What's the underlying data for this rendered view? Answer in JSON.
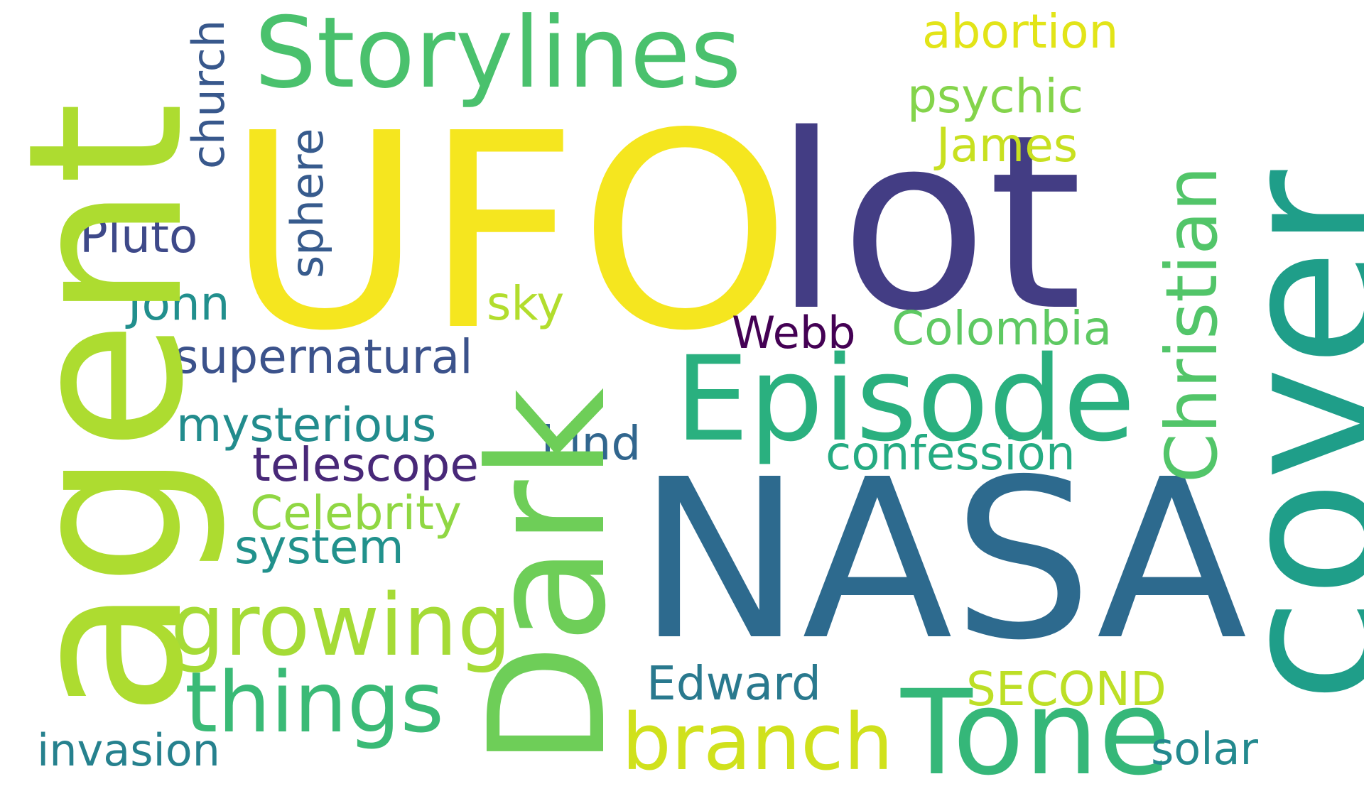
{
  "words": {
    "ufo": {
      "text": "UFO",
      "color": "#f5e61f"
    },
    "lot": {
      "text": "lot",
      "color": "#433d84"
    },
    "nasa": {
      "text": "NASA",
      "color": "#2d6a8e"
    },
    "agent": {
      "text": "agent",
      "color": "#addc30"
    },
    "cover": {
      "text": "cover",
      "color": "#1f9e89"
    },
    "dark": {
      "text": "Dark",
      "color": "#6ece58"
    },
    "storylines": {
      "text": "Storylines",
      "color": "#4ac16d"
    },
    "episode": {
      "text": "Episode",
      "color": "#2ab07f"
    },
    "tone": {
      "text": "Tone",
      "color": "#35b779"
    },
    "branch": {
      "text": "branch",
      "color": "#d0e11c"
    },
    "growing": {
      "text": "growing",
      "color": "#a5db36"
    },
    "things": {
      "text": "things",
      "color": "#3aba76"
    },
    "christian": {
      "text": "Christian",
      "color": "#52c569"
    },
    "abortion": {
      "text": "abortion",
      "color": "#e2e418"
    },
    "psychic": {
      "text": "psychic",
      "color": "#84d44b"
    },
    "james": {
      "text": "James",
      "color": "#c8e020"
    },
    "church": {
      "text": "church",
      "color": "#38588c"
    },
    "sphere": {
      "text": "sphere",
      "color": "#375b8d"
    },
    "pluto": {
      "text": "Pluto",
      "color": "#3e4989"
    },
    "john": {
      "text": "John",
      "color": "#218f8d"
    },
    "sky": {
      "text": "sky",
      "color": "#b2dd2d"
    },
    "webb": {
      "text": "Webb",
      "color": "#440154"
    },
    "colombia": {
      "text": "Colombia",
      "color": "#5ec962"
    },
    "supernatural": {
      "text": "supernatural",
      "color": "#3b528b"
    },
    "mysterious": {
      "text": "mysterious",
      "color": "#228c8d"
    },
    "kind": {
      "text": "kind",
      "color": "#31668e"
    },
    "confession": {
      "text": "confession",
      "color": "#25ab82"
    },
    "telescope": {
      "text": "telescope",
      "color": "#482878"
    },
    "celebrity": {
      "text": "Celebrity",
      "color": "#90d743"
    },
    "system": {
      "text": "system",
      "color": "#21918c"
    },
    "edward": {
      "text": "Edward",
      "color": "#29798e"
    },
    "second": {
      "text": "SECOND",
      "color": "#bddf26"
    },
    "invasion": {
      "text": "invasion",
      "color": "#26818e"
    },
    "solar": {
      "text": "solar",
      "color": "#23898e"
    }
  }
}
